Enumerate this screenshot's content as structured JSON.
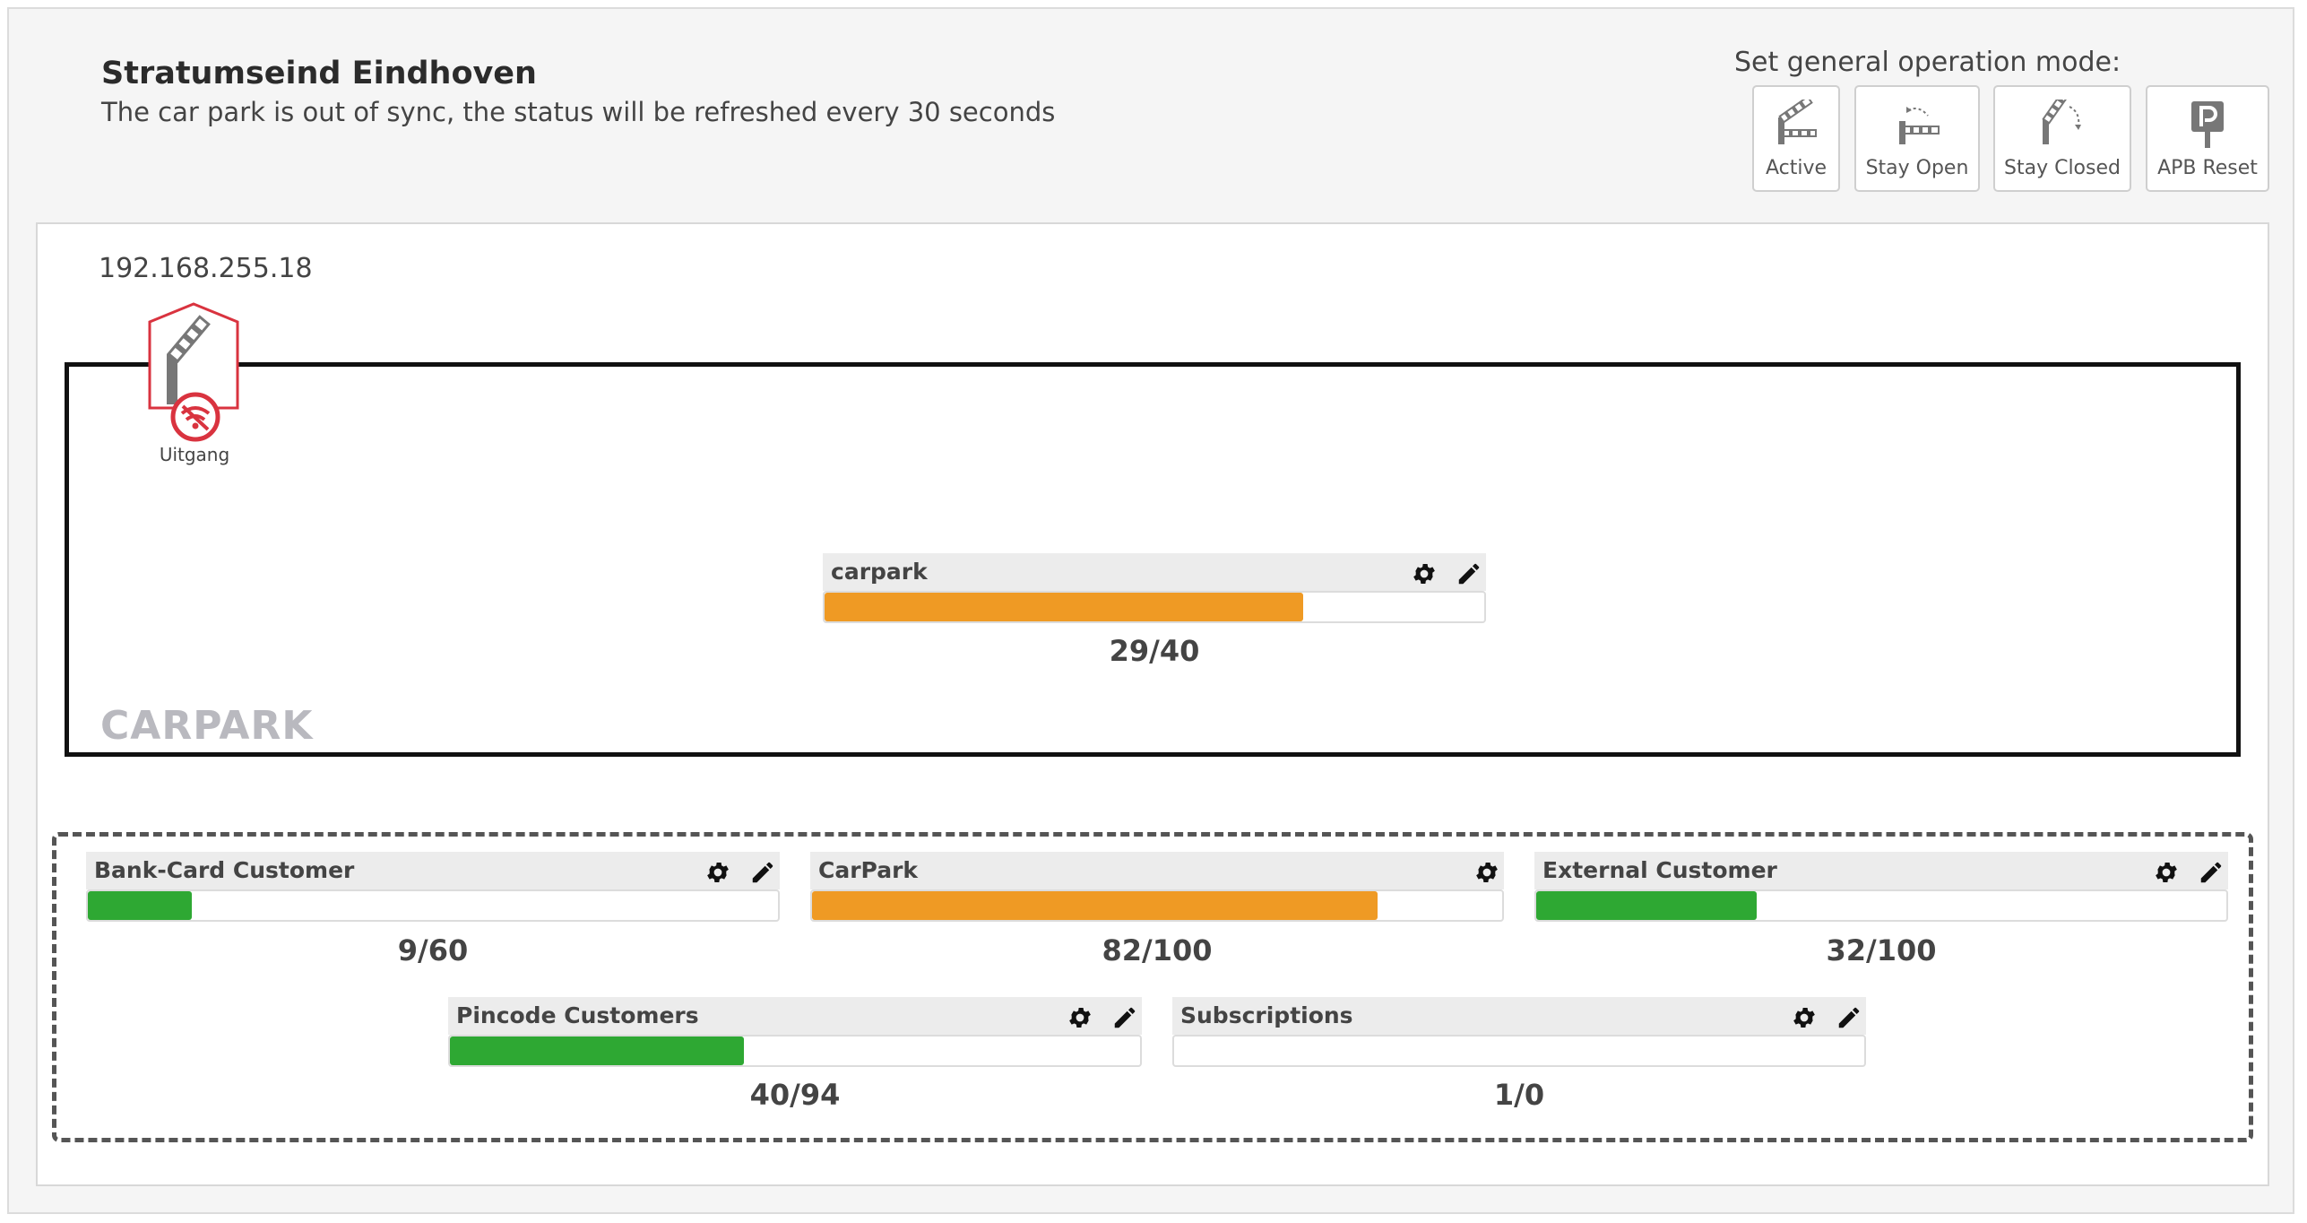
{
  "header": {
    "title": "Stratumseind Eindhoven",
    "subtitle": "The car park is out of sync, the status will be refreshed every 30 seconds"
  },
  "operation_mode": {
    "label": "Set general operation mode:",
    "buttons": [
      {
        "label": "Active",
        "icon": "barrier-active-icon"
      },
      {
        "label": "Stay Open",
        "icon": "barrier-stay-open-icon"
      },
      {
        "label": "Stay Closed",
        "icon": "barrier-stay-closed-icon"
      },
      {
        "label": "APB Reset",
        "icon": "parking-p-icon"
      }
    ]
  },
  "controller": {
    "ip": "192.168.255.18",
    "device_label": "Uitgang",
    "device_status": "no-connection",
    "status_color": "#d9333f"
  },
  "carpark": {
    "name": "CARPARK",
    "counter": {
      "name": "carpark",
      "count": "29/40",
      "fill_percent": 72.5,
      "color": "#ef9a24"
    }
  },
  "groups": [
    {
      "name": "Bank-Card Customer",
      "count": "9/60",
      "fill_percent": 15,
      "color": "#2ea833",
      "editable": true
    },
    {
      "name": "CarPark",
      "count": "82/100",
      "fill_percent": 82,
      "color": "#ef9a24",
      "editable": false
    },
    {
      "name": "External Customer",
      "count": "32/100",
      "fill_percent": 32,
      "color": "#2ea833",
      "editable": true
    },
    {
      "name": "Pincode Customers",
      "count": "40/94",
      "fill_percent": 42.6,
      "color": "#2ea833",
      "editable": true
    },
    {
      "name": "Subscriptions",
      "count": "1/0",
      "fill_percent": 0,
      "color": "#2ea833",
      "editable": true
    }
  ],
  "colors": {
    "orange": "#ef9a24",
    "green": "#2ea833",
    "alert_red": "#d9333f"
  }
}
